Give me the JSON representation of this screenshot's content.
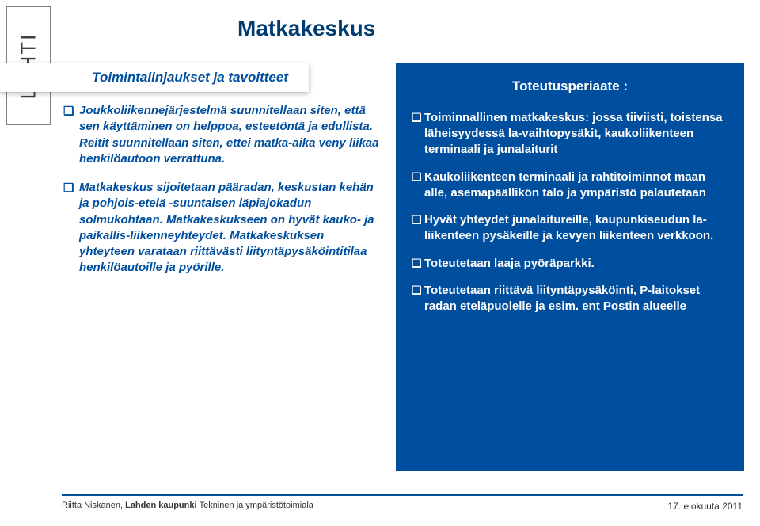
{
  "logo": {
    "text": "LAHTI"
  },
  "title": "Matkakeskus",
  "leftColumn": {
    "subtitle": "Toimintalinjaukset ja tavoitteet",
    "bullets": [
      "Joukkoliikennejärjestelmä suunnitellaan siten, että sen käyttäminen on helppoa, esteetöntä ja edullista. Reitit suunnitellaan siten, ettei matka-aika veny liikaa henkilöautoon verrattuna.",
      "Matkakeskus sijoitetaan pääradan, keskustan kehän ja pohjois-etelä -suuntaisen läpiajokadun solmukohtaan. Matkakeskukseen on hyvät kauko- ja paikallis-liikenneyhteydet. Matkakeskuksen yhteyteen varataan riittävästi liityntäpysäköintitilaa henkilöautoille ja pyörille."
    ]
  },
  "rightColumn": {
    "title": "Toteutusperiaate :",
    "bullets": [
      "Toiminnallinen matkakeskus: jossa tiiviisti, toistensa läheisyydessä la-vaihtopysäkit, kaukoliikenteen terminaali ja junalaiturit",
      "Kaukoliikenteen terminaali ja rahtitoiminnot maan alle, asemapäällikön talo ja ympäristö palautetaan",
      "Hyvät yhteydet junalaitureille, kaupunkiseudun la-liikenteen pysäkeille ja kevyen liikenteen verkkoon.",
      "Toteutetaan laaja pyöräparkki.",
      "Toteutetaan riittävä liityntäpysäköinti, P-laitokset radan eteläpuolelle ja esim. ent Postin alueelle"
    ]
  },
  "footer": {
    "author": "Riitta Niskanen, ",
    "org_bold": "Lahden kaupunki ",
    "org_rest": "Tekninen ja ympäristötoimiala",
    "date": "17. elokuuta 2011"
  },
  "colors": {
    "primary_blue": "#004e9e",
    "dark_blue": "#003b71"
  }
}
